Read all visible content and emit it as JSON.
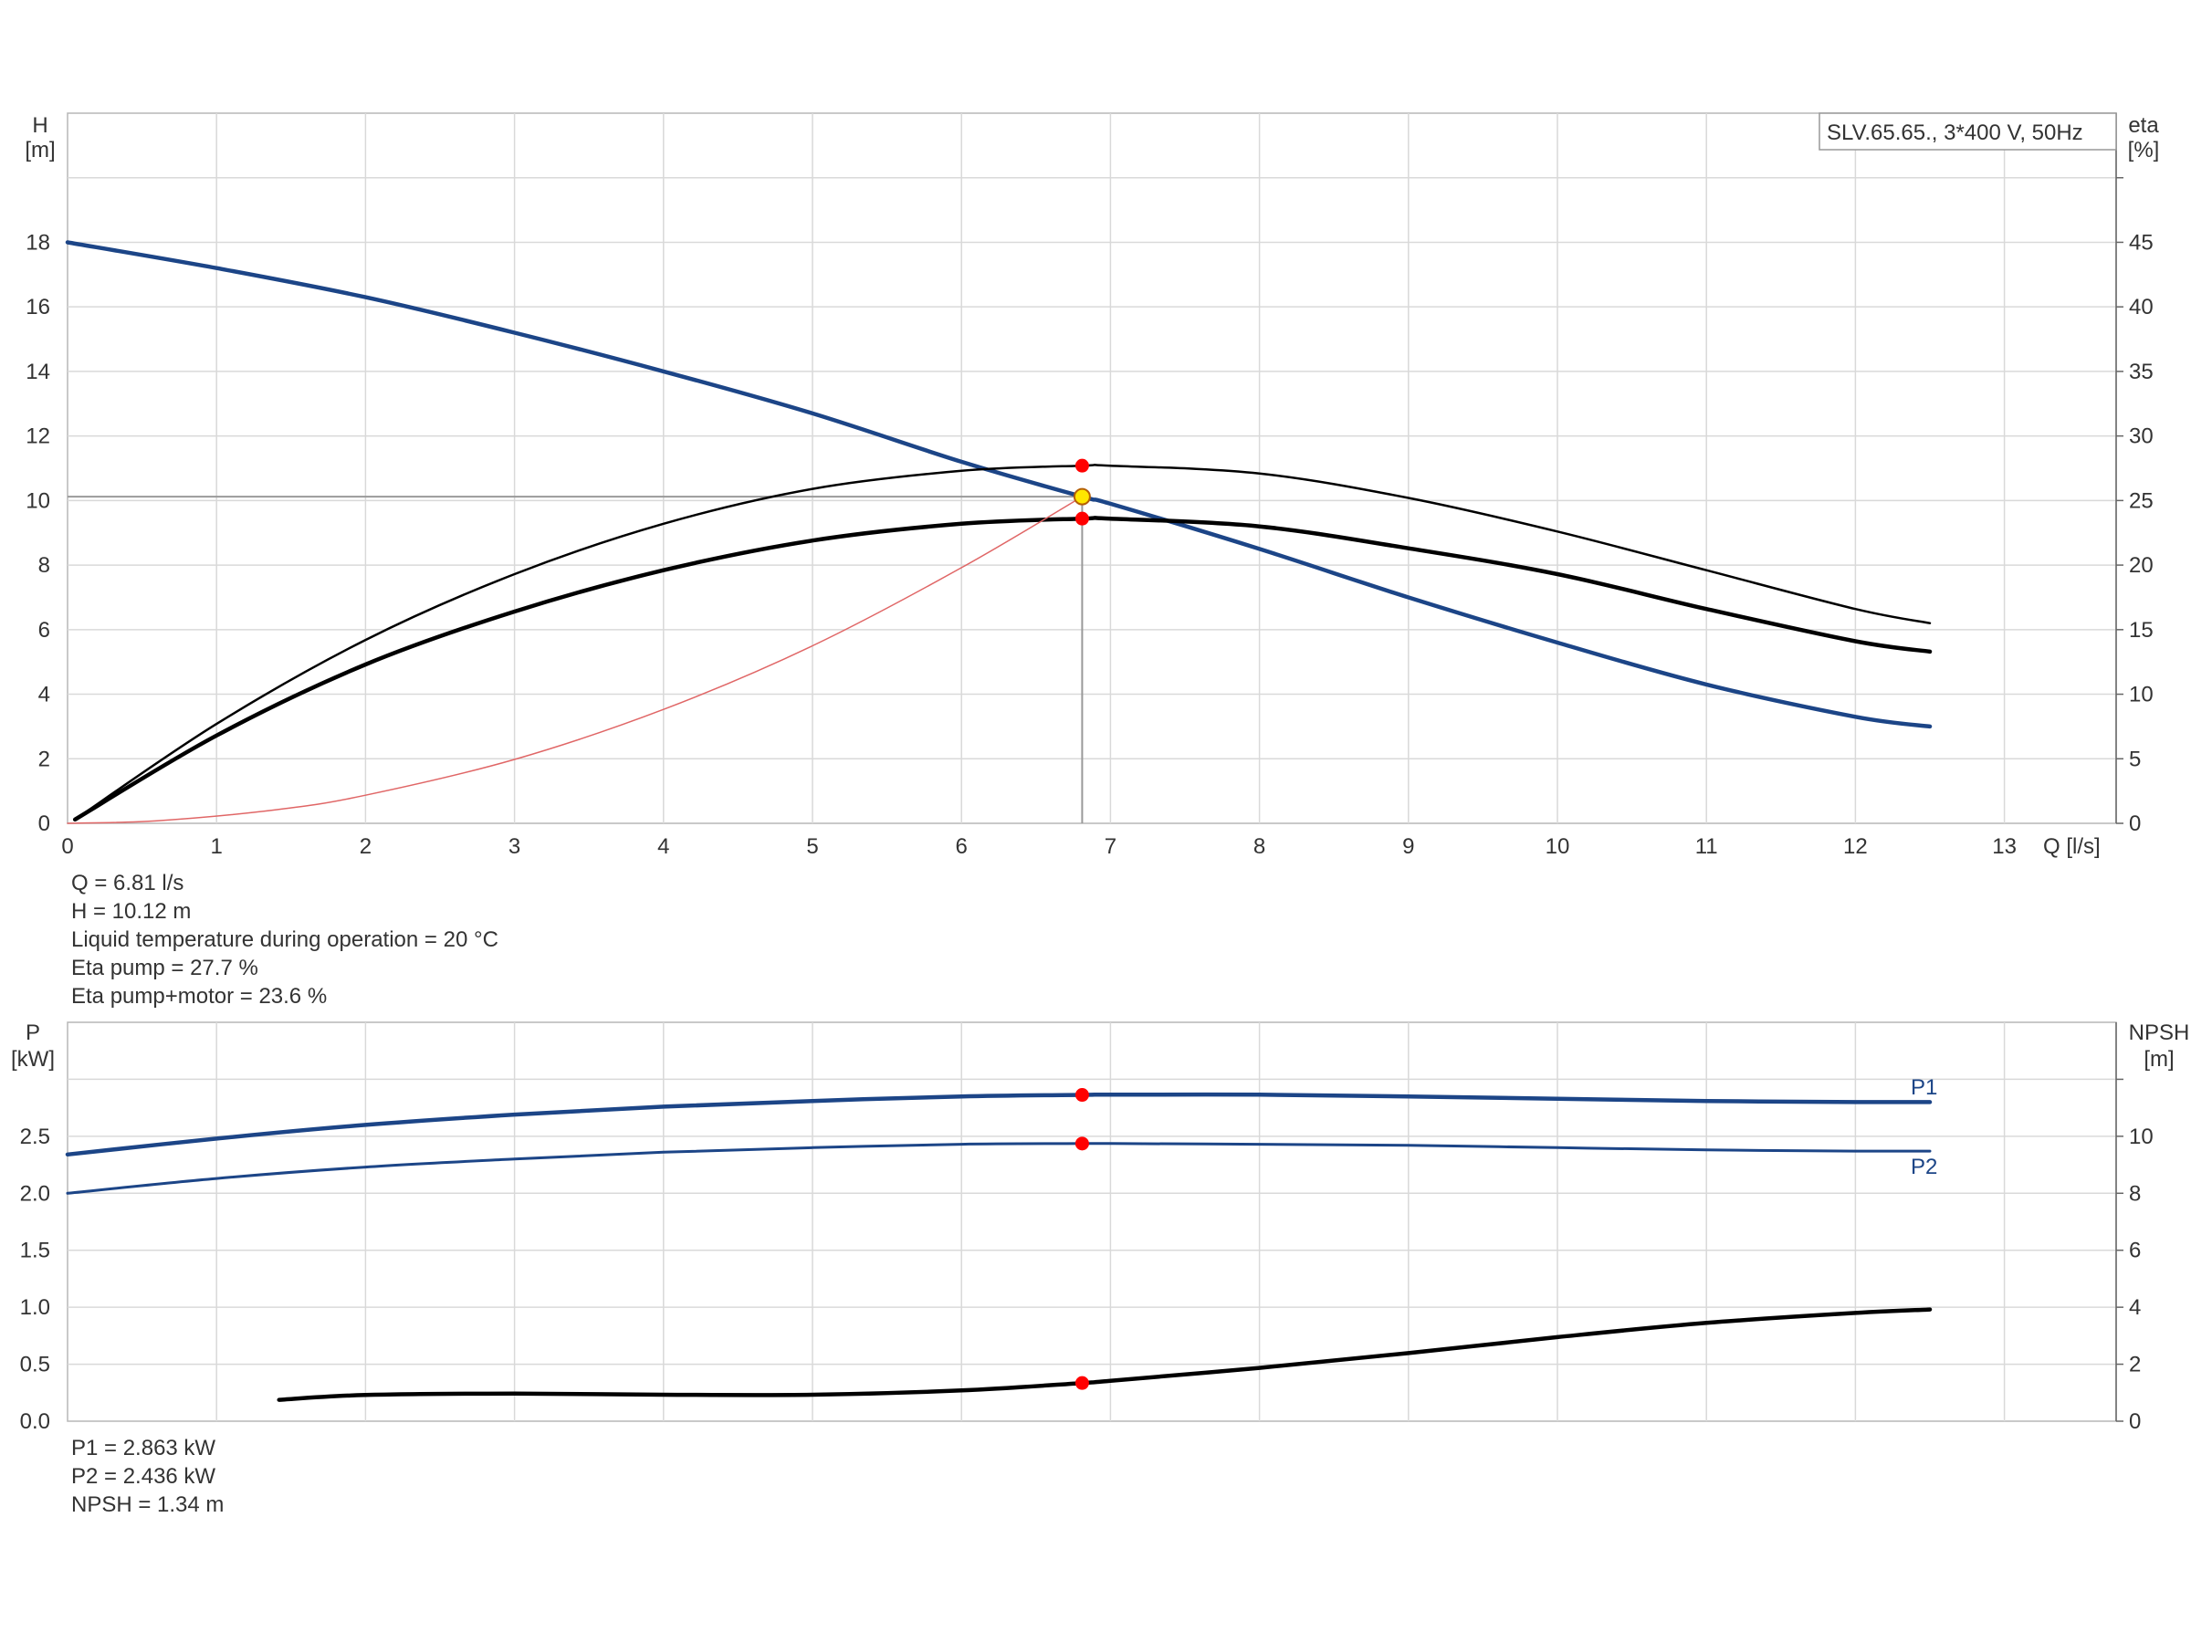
{
  "colors": {
    "pump_curve": "#1c4587",
    "efficiency": "#000000",
    "system_curve": "#e06666",
    "duty_point": "#ff0000",
    "operating_point": "#ffe600",
    "grid": "#d9d9d9",
    "power": "#1c4587"
  },
  "legend_box": "SLV.65.65., 3*400 V, 50Hz",
  "top_info": [
    "Q = 6.81 l/s",
    "H = 10.12 m",
    "Liquid temperature during operation = 20 °C",
    "Eta pump = 27.7 %",
    "Eta pump+motor = 23.6 %"
  ],
  "bottom_info": [
    "P1 = 2.863 kW",
    "P2 = 2.436 kW",
    "NPSH = 1.34 m"
  ],
  "chart_data": [
    {
      "type": "line",
      "name": "head_and_efficiency",
      "xlabel": "Q [l/s]",
      "ylabel_left": "H",
      "ylabel_left_unit": "[m]",
      "ylabel_right": "eta",
      "ylabel_right_unit": "[%]",
      "xlim": [
        0,
        13.75
      ],
      "ylim_left": [
        0,
        22
      ],
      "ylim_right": [
        0,
        55
      ],
      "xticks": [
        0,
        1,
        2,
        3,
        4,
        5,
        6,
        7,
        8,
        9,
        10,
        11,
        12,
        13
      ],
      "yticks_left": [
        0,
        2,
        4,
        6,
        8,
        10,
        12,
        14,
        16,
        18
      ],
      "yticks_right": [
        0,
        5,
        10,
        15,
        20,
        25,
        30,
        35,
        40,
        45
      ],
      "grid": true,
      "series": [
        {
          "role": "pump_curve",
          "axis": "left",
          "x": [
            0,
            1,
            2,
            3,
            4,
            5,
            6,
            6.81,
            7,
            8,
            9,
            10,
            11,
            12,
            12.5
          ],
          "y": [
            18,
            17.2,
            16.3,
            15.2,
            14,
            12.7,
            11.2,
            10.12,
            9.9,
            8.5,
            7,
            5.6,
            4.3,
            3.3,
            3
          ]
        },
        {
          "role": "eta_pump",
          "axis": "right",
          "x": [
            0.05,
            1,
            2,
            3,
            4,
            5,
            6,
            6.81,
            7,
            8,
            9,
            10,
            11,
            12,
            12.5
          ],
          "y": [
            0.3,
            7.7,
            14.2,
            19.3,
            23.2,
            25.9,
            27.3,
            27.7,
            27.7,
            27.1,
            25.2,
            22.6,
            19.6,
            16.6,
            15.5
          ]
        },
        {
          "role": "eta_pump_motor",
          "axis": "right",
          "x": [
            0.05,
            1,
            2,
            3,
            4,
            5,
            6,
            6.81,
            7,
            8,
            9,
            10,
            11,
            12,
            12.5
          ],
          "y": [
            0.3,
            6.8,
            12.3,
            16.4,
            19.6,
            21.9,
            23.2,
            23.6,
            23.6,
            23,
            21.3,
            19.3,
            16.6,
            14.1,
            13.3
          ]
        },
        {
          "role": "system_curve",
          "axis": "left",
          "x": [
            0,
            0.6,
            1.4,
            2,
            3,
            4,
            5,
            6,
            6.81
          ],
          "y": [
            0,
            0.08,
            0.42,
            0.87,
            1.98,
            3.53,
            5.5,
            7.92,
            10.12
          ]
        }
      ],
      "duty_points": [
        {
          "axis": "right",
          "x": 6.81,
          "y": 27.7
        },
        {
          "axis": "right",
          "x": 6.81,
          "y": 23.6
        }
      ],
      "operating_point": {
        "x": 6.81,
        "y": 10.12
      }
    },
    {
      "type": "line",
      "name": "power_and_npsh",
      "ylabel_left": "P",
      "ylabel_left_unit": "[kW]",
      "ylabel_right": "NPSH",
      "ylabel_right_unit": "[m]",
      "xlim": [
        0,
        13.75
      ],
      "ylim_left": [
        0,
        3.5
      ],
      "ylim_right": [
        0,
        14
      ],
      "yticks_left": [
        "0.0",
        "0.5",
        "1.0",
        "1.5",
        "2.0",
        "2.5"
      ],
      "yticks_right": [
        0,
        2,
        4,
        6,
        8,
        10
      ],
      "grid": true,
      "series": [
        {
          "name": "P1",
          "axis": "left",
          "x": [
            0,
            1,
            2,
            3,
            4,
            5,
            6,
            6.81,
            7,
            8,
            9,
            10,
            11,
            12,
            12.5
          ],
          "y": [
            2.34,
            2.48,
            2.6,
            2.69,
            2.76,
            2.81,
            2.85,
            2.863,
            2.865,
            2.865,
            2.85,
            2.83,
            2.81,
            2.8,
            2.8
          ]
        },
        {
          "name": "P2",
          "axis": "left",
          "x": [
            0,
            1,
            2,
            3,
            4,
            5,
            6,
            6.81,
            7,
            8,
            9,
            10,
            11,
            12,
            12.5
          ],
          "y": [
            2.0,
            2.13,
            2.23,
            2.3,
            2.36,
            2.4,
            2.43,
            2.436,
            2.436,
            2.43,
            2.42,
            2.4,
            2.38,
            2.37,
            2.37
          ]
        },
        {
          "role": "npsh",
          "axis": "right",
          "x": [
            1.42,
            2,
            3,
            4,
            5,
            6,
            6.81,
            7,
            8,
            9,
            10,
            11,
            12,
            12.5
          ],
          "y": [
            0.75,
            0.92,
            0.97,
            0.93,
            0.93,
            1.08,
            1.34,
            1.42,
            1.87,
            2.39,
            2.95,
            3.45,
            3.8,
            3.92
          ]
        }
      ],
      "duty_points": [
        {
          "axis": "left",
          "x": 6.81,
          "y": 2.863
        },
        {
          "axis": "left",
          "x": 6.81,
          "y": 2.436
        },
        {
          "axis": "right",
          "x": 6.81,
          "y": 1.34
        }
      ]
    }
  ]
}
